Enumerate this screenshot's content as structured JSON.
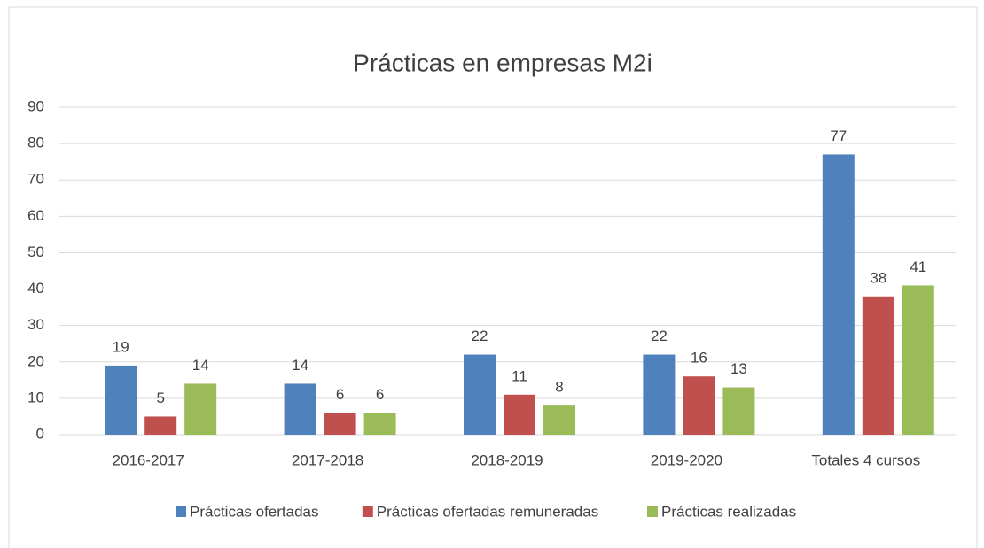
{
  "chart_data": {
    "type": "bar",
    "title": "Prácticas en empresas M2i",
    "categories": [
      "2016-2017",
      "2017-2018",
      "2018-2019",
      "2019-2020",
      "Totales 4 cursos"
    ],
    "series": [
      {
        "name": "Prácticas ofertadas",
        "color": "#4f81bd",
        "values": [
          19,
          14,
          22,
          22,
          77
        ]
      },
      {
        "name": "Prácticas ofertadas remuneradas",
        "color": "#c0504d",
        "values": [
          5,
          6,
          11,
          16,
          38
        ]
      },
      {
        "name": "Prácticas realizadas",
        "color": "#9bbb59",
        "values": [
          14,
          6,
          8,
          13,
          41
        ]
      }
    ],
    "ylim": [
      0,
      90
    ],
    "yticks": [
      0,
      10,
      20,
      30,
      40,
      50,
      60,
      70,
      80,
      90
    ],
    "grid": true,
    "legend": "bottom"
  }
}
